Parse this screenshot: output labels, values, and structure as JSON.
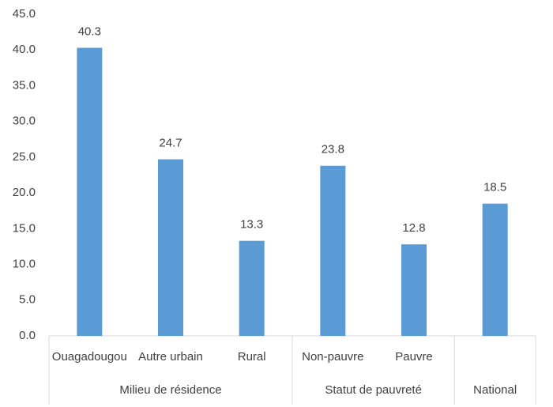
{
  "chart_data": {
    "type": "bar",
    "categories": [
      "Ouagadougou",
      "Autre urbain",
      "Rural",
      "Non-pauvre",
      "Pauvre",
      null
    ],
    "category_groups": [
      "Milieu de résidence",
      "Milieu de résidence",
      "Milieu de résidence",
      "Statut de pauvreté",
      "Statut de pauvreté",
      "National"
    ],
    "values": [
      40.3,
      24.7,
      13.3,
      23.8,
      12.8,
      18.5
    ],
    "color": "#5b9bd5",
    "ylim": [
      0,
      45
    ],
    "yticks": [
      {
        "value": 0,
        "label": "0.0"
      },
      {
        "value": 5,
        "label": "5.0"
      },
      {
        "value": 10,
        "label": "10.0"
      },
      {
        "value": 15,
        "label": "15.0"
      },
      {
        "value": 20,
        "label": "20.0"
      },
      {
        "value": 25,
        "label": "25.0"
      },
      {
        "value": 30,
        "label": "30.0"
      },
      {
        "value": 35,
        "label": "35.0"
      },
      {
        "value": 40,
        "label": "40.0"
      },
      {
        "value": 45,
        "label": "45.0"
      }
    ],
    "grid": false
  }
}
